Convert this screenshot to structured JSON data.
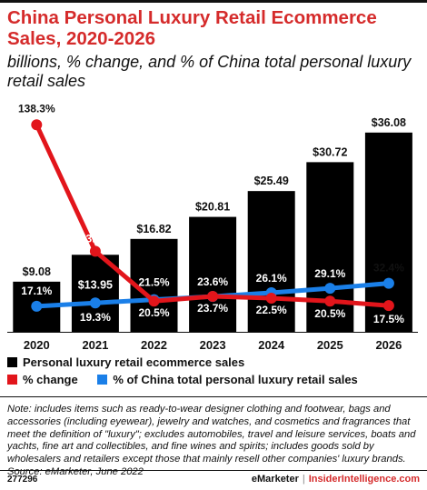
{
  "header": {
    "title": "China Personal Luxury Retail Ecommerce Sales, 2020-2026",
    "subtitle": "billions, % change, and % of China total personal luxury retail sales"
  },
  "chart_data": {
    "type": "bar",
    "categories": [
      "2020",
      "2021",
      "2022",
      "2023",
      "2024",
      "2025",
      "2026"
    ],
    "series": [
      {
        "name": "Personal luxury retail ecommerce sales",
        "kind": "bar",
        "color": "#000000",
        "values": [
          9.08,
          13.95,
          16.82,
          20.81,
          25.49,
          30.72,
          36.08
        ],
        "labels": [
          "$9.08",
          "$13.95",
          "$16.82",
          "$20.81",
          "$25.49",
          "$30.72",
          "$36.08"
        ]
      },
      {
        "name": "% change",
        "kind": "line",
        "color": "#e2151b",
        "values": [
          138.3,
          53.8,
          20.5,
          23.7,
          22.5,
          20.5,
          17.5
        ],
        "labels": [
          "138.3%",
          "53.8%",
          "20.5%",
          "23.7%",
          "22.5%",
          "20.5%",
          "17.5%"
        ]
      },
      {
        "name": "% of China total personal luxury retail sales",
        "kind": "line",
        "color": "#1a7fe8",
        "values": [
          17.1,
          19.3,
          21.5,
          23.6,
          26.1,
          29.1,
          32.4
        ],
        "labels": [
          "17.1%",
          "19.3%",
          "21.5%",
          "23.6%",
          "26.1%",
          "29.1%",
          "32.4%"
        ]
      }
    ],
    "grid": false,
    "legend": "bottom"
  },
  "note": "Note: includes items such as ready-to-wear designer clothing and footwear, bags and accessories (including eyewear), jewelry and watches, and cosmetics and fragrances that meet the definition of \"luxury\"; excludes automobiles, travel and leisure services, boats and yachts, fine art and collectibles, and fine wines and spirits; includes goods sold by wholesalers and retailers except those that mainly resell other companies' luxury brands.",
  "source": "Source: eMarketer, June 2022",
  "footer": {
    "id": "277296",
    "brand": "eMarketer",
    "separator": "|",
    "site": "InsiderIntelligence.com"
  },
  "colors": {
    "title": "#d52b2b",
    "bar": "#000000",
    "change_line": "#e2151b",
    "share_line": "#1a7fe8",
    "site_link": "#d52b2b"
  }
}
